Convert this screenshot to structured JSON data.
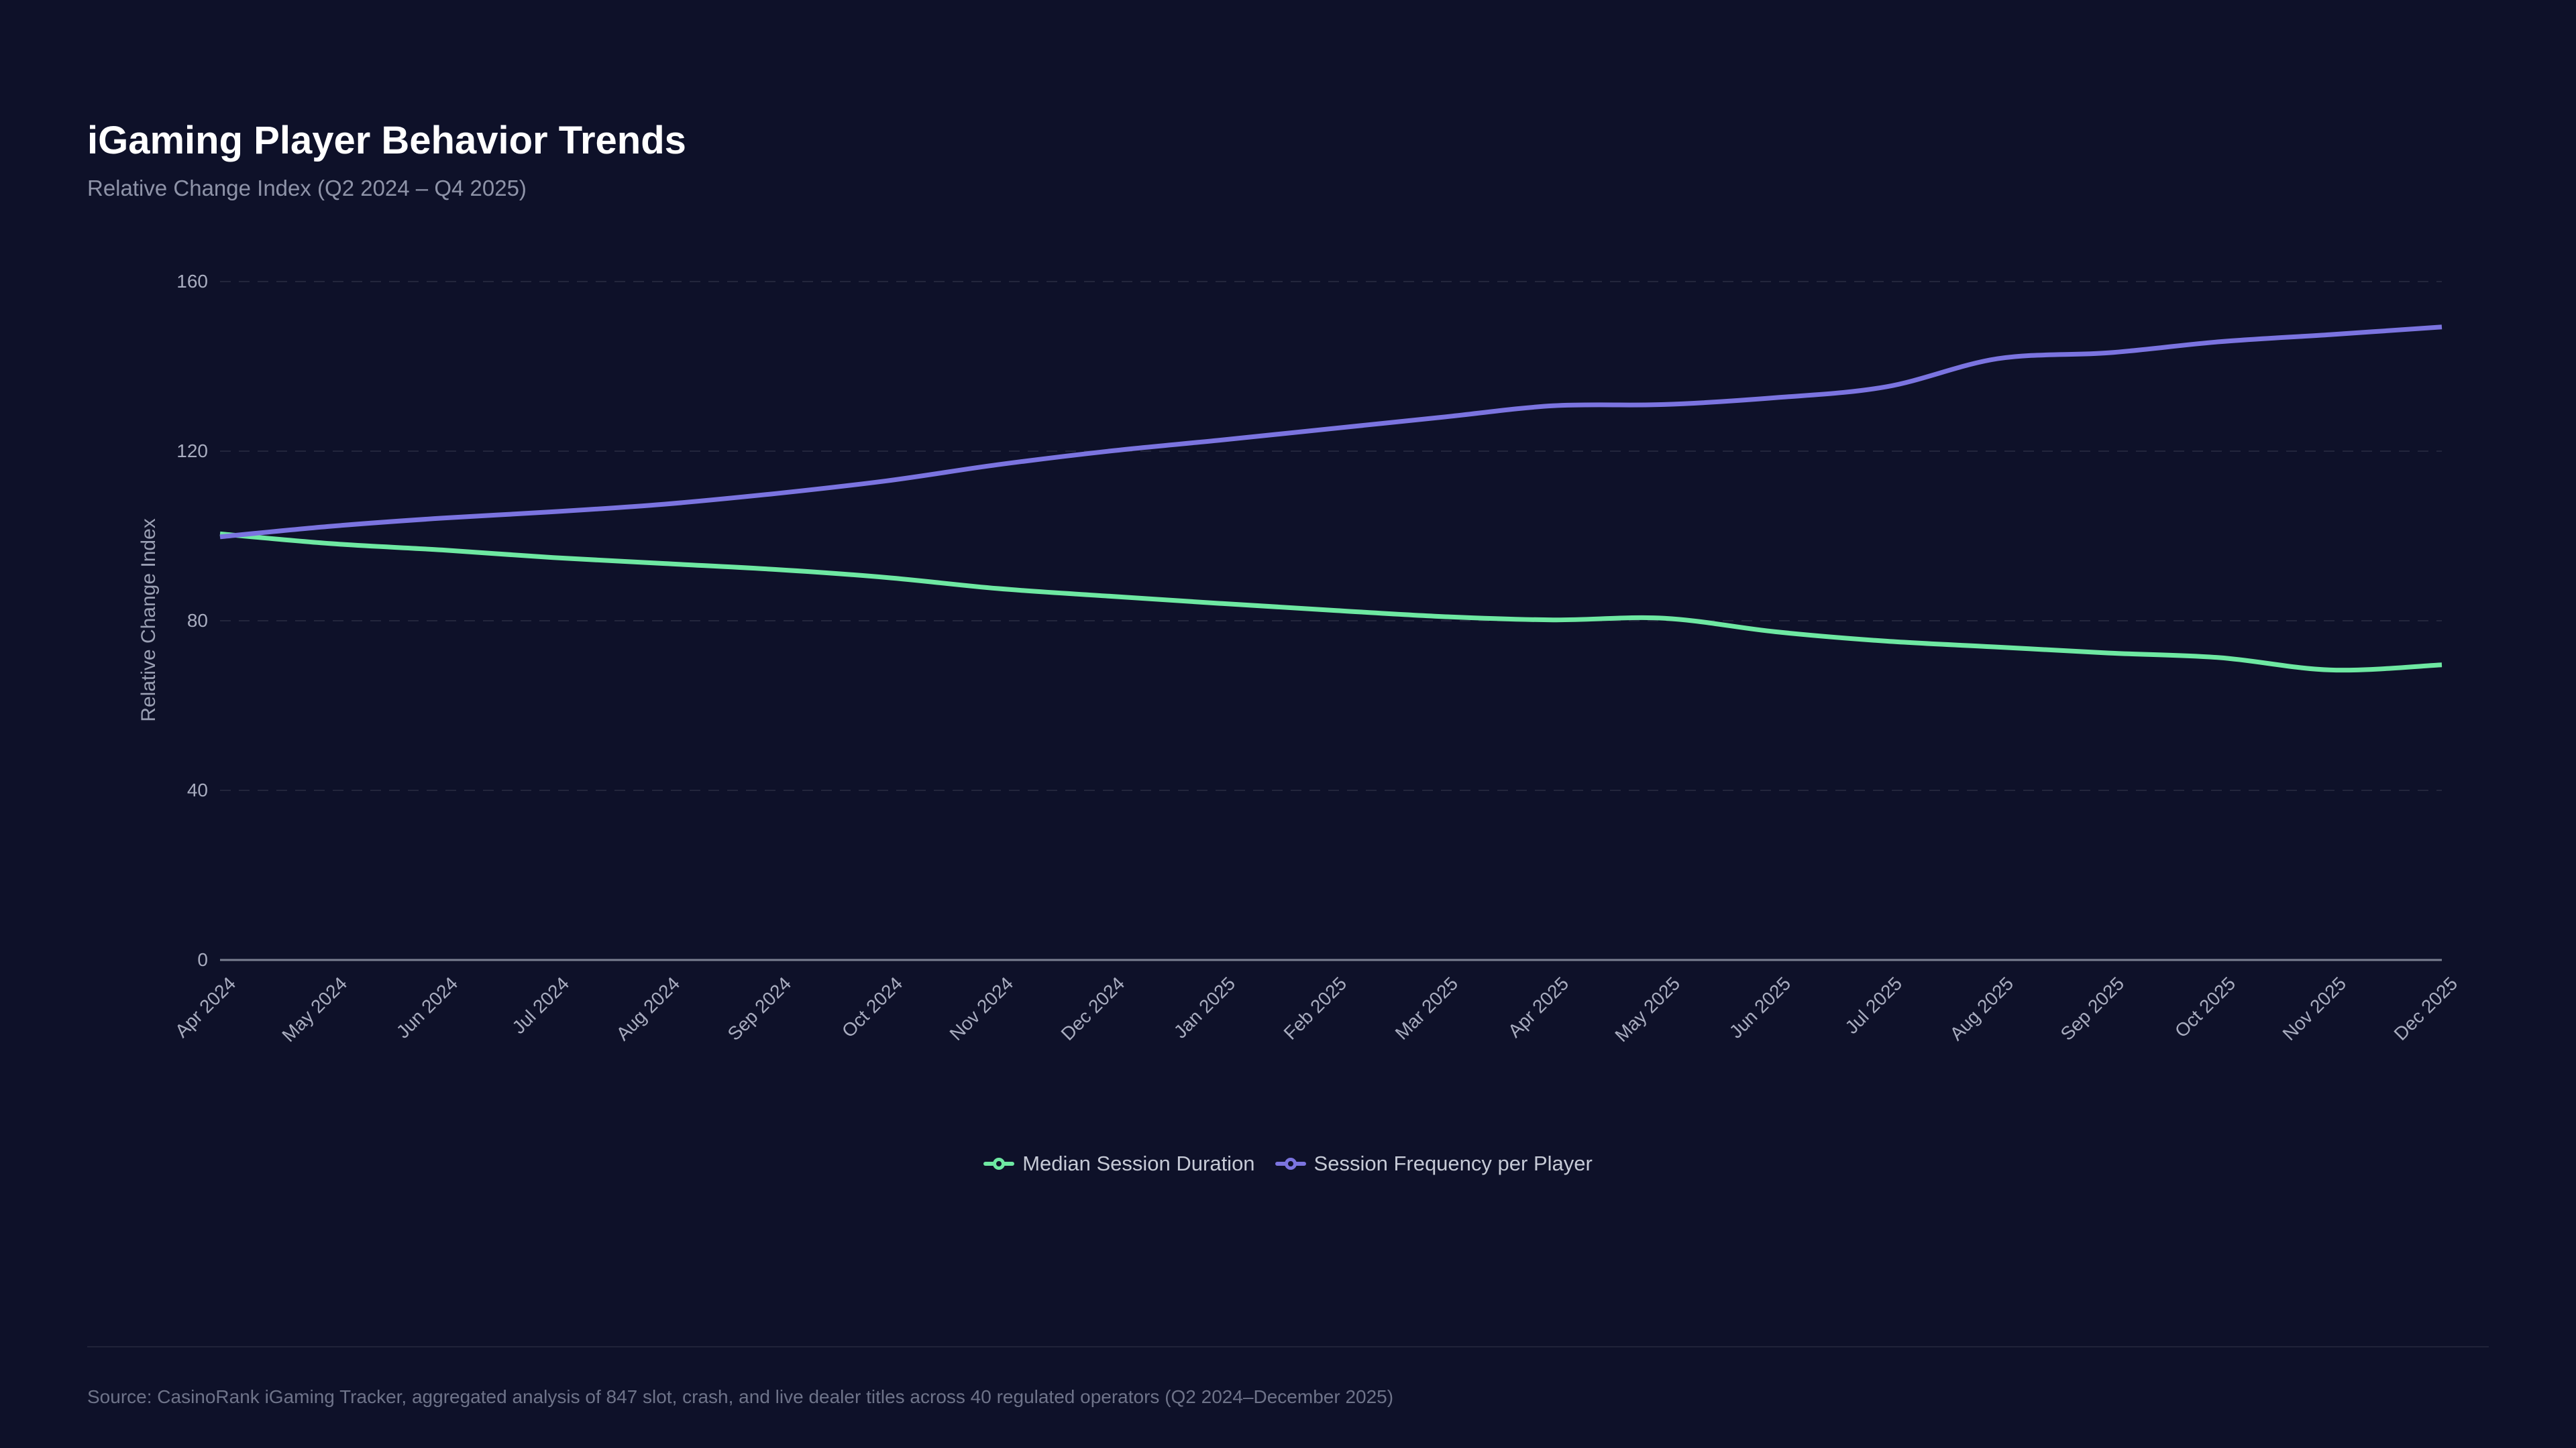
{
  "header": {
    "title": "iGaming Player Behavior Trends",
    "subtitle": "Relative Change Index (Q2 2024 – Q4 2025)"
  },
  "colors": {
    "background": "#0e1129",
    "axis_line": "#7a7f91",
    "gridline": "rgba(255,255,255,0.09)",
    "tick_text": "#a9adc0",
    "series_green": "#6ee8a2",
    "series_purple": "#7b74e0"
  },
  "chart_data": {
    "type": "line",
    "title": "iGaming Player Behavior Trends",
    "subtitle": "Relative Change Index (Q2 2024 – Q4 2025)",
    "xlabel": "",
    "ylabel": "Relative Change Index",
    "x": [
      "Apr 2024",
      "May 2024",
      "Jun 2024",
      "Jul 2024",
      "Aug 2024",
      "Sep 2024",
      "Oct 2024",
      "Nov 2024",
      "Dec 2024",
      "Jan 2025",
      "Feb 2025",
      "Mar 2025",
      "Apr 2025",
      "May 2025",
      "Jun 2025",
      "Jul 2025",
      "Aug 2025",
      "Sep 2025",
      "Oct 2025",
      "Nov 2025",
      "Dec 2025"
    ],
    "y_ticks": [
      0,
      40,
      80,
      120,
      160
    ],
    "ylim": [
      0,
      170
    ],
    "grid": "horizontal-dashed",
    "smooth": true,
    "legend_position": "bottom-center",
    "series": [
      {
        "name": "Median Session Duration",
        "color": "#6ee8a2",
        "values": [
          100.5,
          98.2,
          96.7,
          94.9,
          93.5,
          92.1,
          90.2,
          87.6,
          85.8,
          84.1,
          82.5,
          81.0,
          80.2,
          80.6,
          77.4,
          75.2,
          73.8,
          72.4,
          71.3,
          68.4,
          69.6
        ]
      },
      {
        "name": "Session Frequency per Player",
        "color": "#7b74e0",
        "values": [
          99.8,
          102.3,
          104.2,
          105.7,
          107.5,
          110.0,
          113.0,
          116.8,
          120.0,
          122.6,
          125.3,
          128.0,
          130.7,
          131.0,
          132.6,
          135.2,
          141.8,
          143.2,
          145.8,
          147.5,
          149.3
        ]
      }
    ]
  },
  "footer": {
    "source": "Source: CasinoRank iGaming Tracker, aggregated analysis of 847 slot, crash, and live dealer titles across 40 regulated operators (Q2 2024–December 2025)"
  }
}
